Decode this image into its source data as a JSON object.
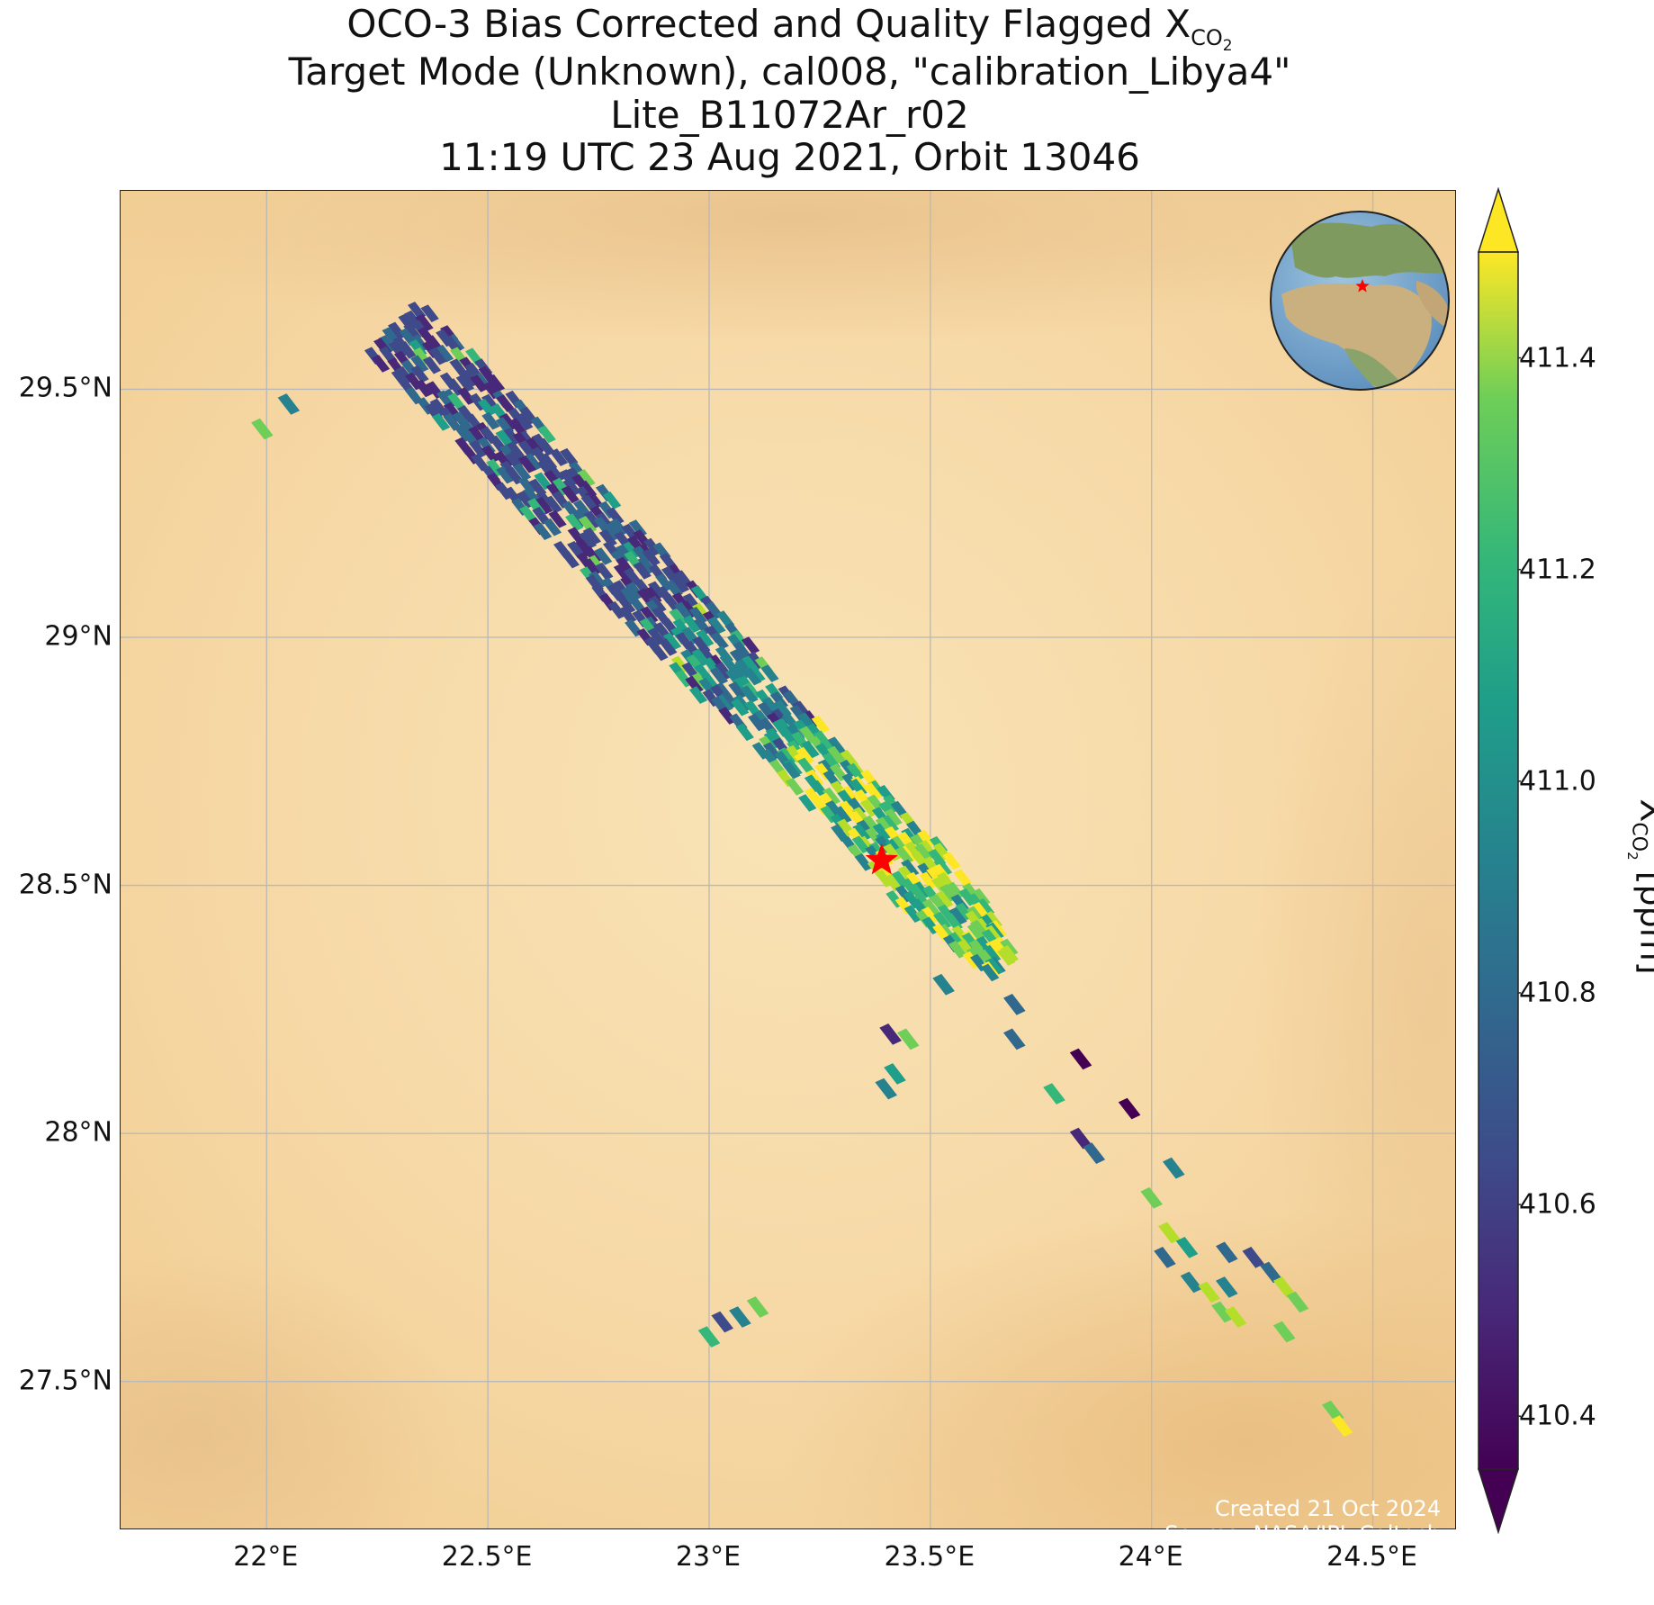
{
  "title": {
    "line1_prefix": "OCO-3 Bias Corrected and Quality Flagged X",
    "line1_sub": "CO",
    "line1_subsub": "2",
    "line2": "Target Mode (Unknown), cal008, \"calibration_Libya4\"",
    "line3": "Lite_B11072Ar_r02",
    "line4": "11:19 UTC 23 Aug 2021, Orbit 13046"
  },
  "map": {
    "lon_range": [
      21.67,
      24.69
    ],
    "lat_range": [
      27.2,
      29.9
    ],
    "x_ticks": [
      {
        "value": 22.0,
        "label": "22°E"
      },
      {
        "value": 22.5,
        "label": "22.5°E"
      },
      {
        "value": 23.0,
        "label": "23°E"
      },
      {
        "value": 23.5,
        "label": "23.5°E"
      },
      {
        "value": 24.0,
        "label": "24°E"
      },
      {
        "value": 24.5,
        "label": "24.5°E"
      }
    ],
    "y_ticks": [
      {
        "value": 29.5,
        "label": "29.5°N"
      },
      {
        "value": 29.0,
        "label": "29°N"
      },
      {
        "value": 28.5,
        "label": "28.5°N"
      },
      {
        "value": 28.0,
        "label": "28°N"
      },
      {
        "value": 27.5,
        "label": "27.5°N"
      }
    ],
    "target": {
      "lon": 23.39,
      "lat": 28.55,
      "color": "#ff0000"
    },
    "background_colors": [
      "#f6d7a3",
      "#f9e2b4",
      "#edc68a"
    ],
    "inset_globe": {
      "center_lon": 23.4,
      "center_lat": 28.5,
      "marker_color": "#ff0000"
    }
  },
  "colorbar": {
    "colormap": "viridis",
    "range": [
      410.35,
      411.5
    ],
    "ticks": [
      "411.4",
      "411.2",
      "411.0",
      "410.8",
      "410.6",
      "410.4"
    ],
    "tick_values": [
      411.4,
      411.2,
      411.0,
      410.8,
      410.6,
      410.4
    ],
    "label_prefix": "X",
    "label_sub": "CO",
    "label_subsub": "2",
    "label_suffix": " [ppm]"
  },
  "chart_data": {
    "type": "scatter",
    "title": "OCO-3 Bias Corrected and Quality Flagged XCO2",
    "xlabel": "",
    "ylabel": "",
    "series": [
      {
        "kind": "main_swath",
        "start": {
          "lon": 22.3,
          "lat": 29.62
        },
        "end": {
          "lon": 23.66,
          "lat": 28.35
        },
        "width_deg": 0.12,
        "value_trend": "low (~410.4-410.7 ppm) in the northwest, high (~411.3-411.5 ppm) toward the southeast end"
      },
      {
        "kind": "scattered_soundings",
        "points": [
          {
            "lon": 21.99,
            "lat": 29.42,
            "value": 411.3
          },
          {
            "lon": 22.05,
            "lat": 29.47,
            "value": 410.9
          },
          {
            "lon": 23.41,
            "lat": 28.2,
            "value": 410.5
          },
          {
            "lon": 23.45,
            "lat": 28.19,
            "value": 411.3
          },
          {
            "lon": 23.42,
            "lat": 28.12,
            "value": 411.0
          },
          {
            "lon": 23.4,
            "lat": 28.09,
            "value": 410.9
          },
          {
            "lon": 23.53,
            "lat": 28.3,
            "value": 410.9
          },
          {
            "lon": 23.69,
            "lat": 28.26,
            "value": 410.7
          },
          {
            "lon": 23.69,
            "lat": 28.19,
            "value": 410.7
          },
          {
            "lon": 23.84,
            "lat": 28.15,
            "value": 410.4
          },
          {
            "lon": 23.78,
            "lat": 28.08,
            "value": 411.1
          },
          {
            "lon": 23.95,
            "lat": 28.05,
            "value": 410.4
          },
          {
            "lon": 23.84,
            "lat": 27.99,
            "value": 410.5
          },
          {
            "lon": 23.87,
            "lat": 27.96,
            "value": 410.7
          },
          {
            "lon": 24.05,
            "lat": 27.93,
            "value": 410.8
          },
          {
            "lon": 24.0,
            "lat": 27.87,
            "value": 411.3
          },
          {
            "lon": 24.04,
            "lat": 27.8,
            "value": 411.4
          },
          {
            "lon": 24.08,
            "lat": 27.77,
            "value": 411.0
          },
          {
            "lon": 24.03,
            "lat": 27.75,
            "value": 410.7
          },
          {
            "lon": 24.17,
            "lat": 27.76,
            "value": 410.7
          },
          {
            "lon": 24.23,
            "lat": 27.75,
            "value": 410.6
          },
          {
            "lon": 24.27,
            "lat": 27.72,
            "value": 410.7
          },
          {
            "lon": 24.09,
            "lat": 27.7,
            "value": 410.8
          },
          {
            "lon": 24.13,
            "lat": 27.68,
            "value": 411.4
          },
          {
            "lon": 24.16,
            "lat": 27.64,
            "value": 411.2
          },
          {
            "lon": 24.17,
            "lat": 27.69,
            "value": 410.9
          },
          {
            "lon": 24.19,
            "lat": 27.63,
            "value": 411.4
          },
          {
            "lon": 24.3,
            "lat": 27.69,
            "value": 411.4
          },
          {
            "lon": 24.33,
            "lat": 27.66,
            "value": 411.2
          },
          {
            "lon": 24.3,
            "lat": 27.6,
            "value": 411.3
          },
          {
            "lon": 24.41,
            "lat": 27.44,
            "value": 411.3
          },
          {
            "lon": 24.43,
            "lat": 27.41,
            "value": 411.5
          },
          {
            "lon": 23.03,
            "lat": 27.62,
            "value": 410.6
          },
          {
            "lon": 23.07,
            "lat": 27.63,
            "value": 410.8
          },
          {
            "lon": 23.11,
            "lat": 27.65,
            "value": 411.2
          },
          {
            "lon": 23.0,
            "lat": 27.59,
            "value": 411.1
          }
        ]
      }
    ]
  },
  "credit": {
    "line1": "Created 21 Oct 2024",
    "line2": "Source: NASA/JPL-Caltech"
  }
}
